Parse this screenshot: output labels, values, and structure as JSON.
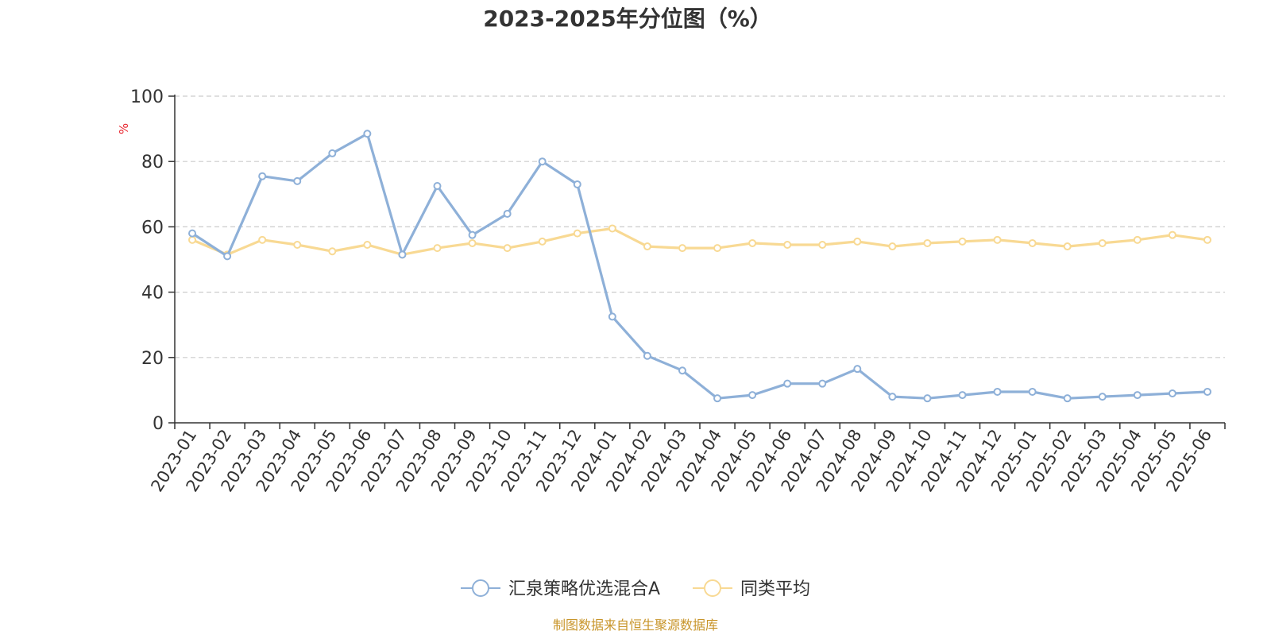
{
  "chart_data": {
    "type": "line",
    "title": "2023-2025年分位图（%）",
    "ylabel": "%",
    "ylim": [
      0,
      100
    ],
    "yticks": [
      0,
      20,
      40,
      60,
      80,
      100
    ],
    "grid": true,
    "legend_position": "bottom",
    "source": "制图数据来自恒生聚源数据库",
    "categories": [
      "2023-01",
      "2023-02",
      "2023-03",
      "2023-04",
      "2023-05",
      "2023-06",
      "2023-07",
      "2023-08",
      "2023-09",
      "2023-10",
      "2023-11",
      "2023-12",
      "2024-01",
      "2024-02",
      "2024-03",
      "2024-04",
      "2024-05",
      "2024-06",
      "2024-07",
      "2024-08",
      "2024-09",
      "2024-10",
      "2024-11",
      "2024-12",
      "2025-01",
      "2025-02",
      "2025-03",
      "2025-04",
      "2025-05",
      "2025-06"
    ],
    "series": [
      {
        "name": "汇泉策略优选混合A",
        "color": "#8eb0d8",
        "values": [
          58.0,
          51.0,
          75.5,
          74.0,
          82.5,
          88.5,
          51.5,
          72.5,
          57.5,
          64.0,
          80.0,
          73.0,
          32.5,
          20.5,
          16.0,
          7.5,
          8.5,
          12.0,
          12.0,
          16.5,
          8.0,
          7.5,
          8.5,
          9.5,
          9.5,
          7.5,
          8.0,
          8.5,
          9.0,
          9.5
        ]
      },
      {
        "name": "同类平均",
        "color": "#f8d993",
        "values": [
          56.0,
          51.5,
          56.0,
          54.5,
          52.5,
          54.5,
          51.5,
          53.5,
          55.0,
          53.5,
          55.5,
          58.0,
          59.5,
          54.0,
          53.5,
          53.5,
          55.0,
          54.5,
          54.5,
          55.5,
          54.0,
          55.0,
          55.5,
          56.0,
          55.0,
          54.0,
          55.0,
          56.0,
          57.5,
          56.0
        ]
      }
    ],
    "colors": {
      "axis": "#333333",
      "grid": "#cccccc",
      "ylabel": "#e8252e",
      "source": "#c8952a"
    }
  }
}
